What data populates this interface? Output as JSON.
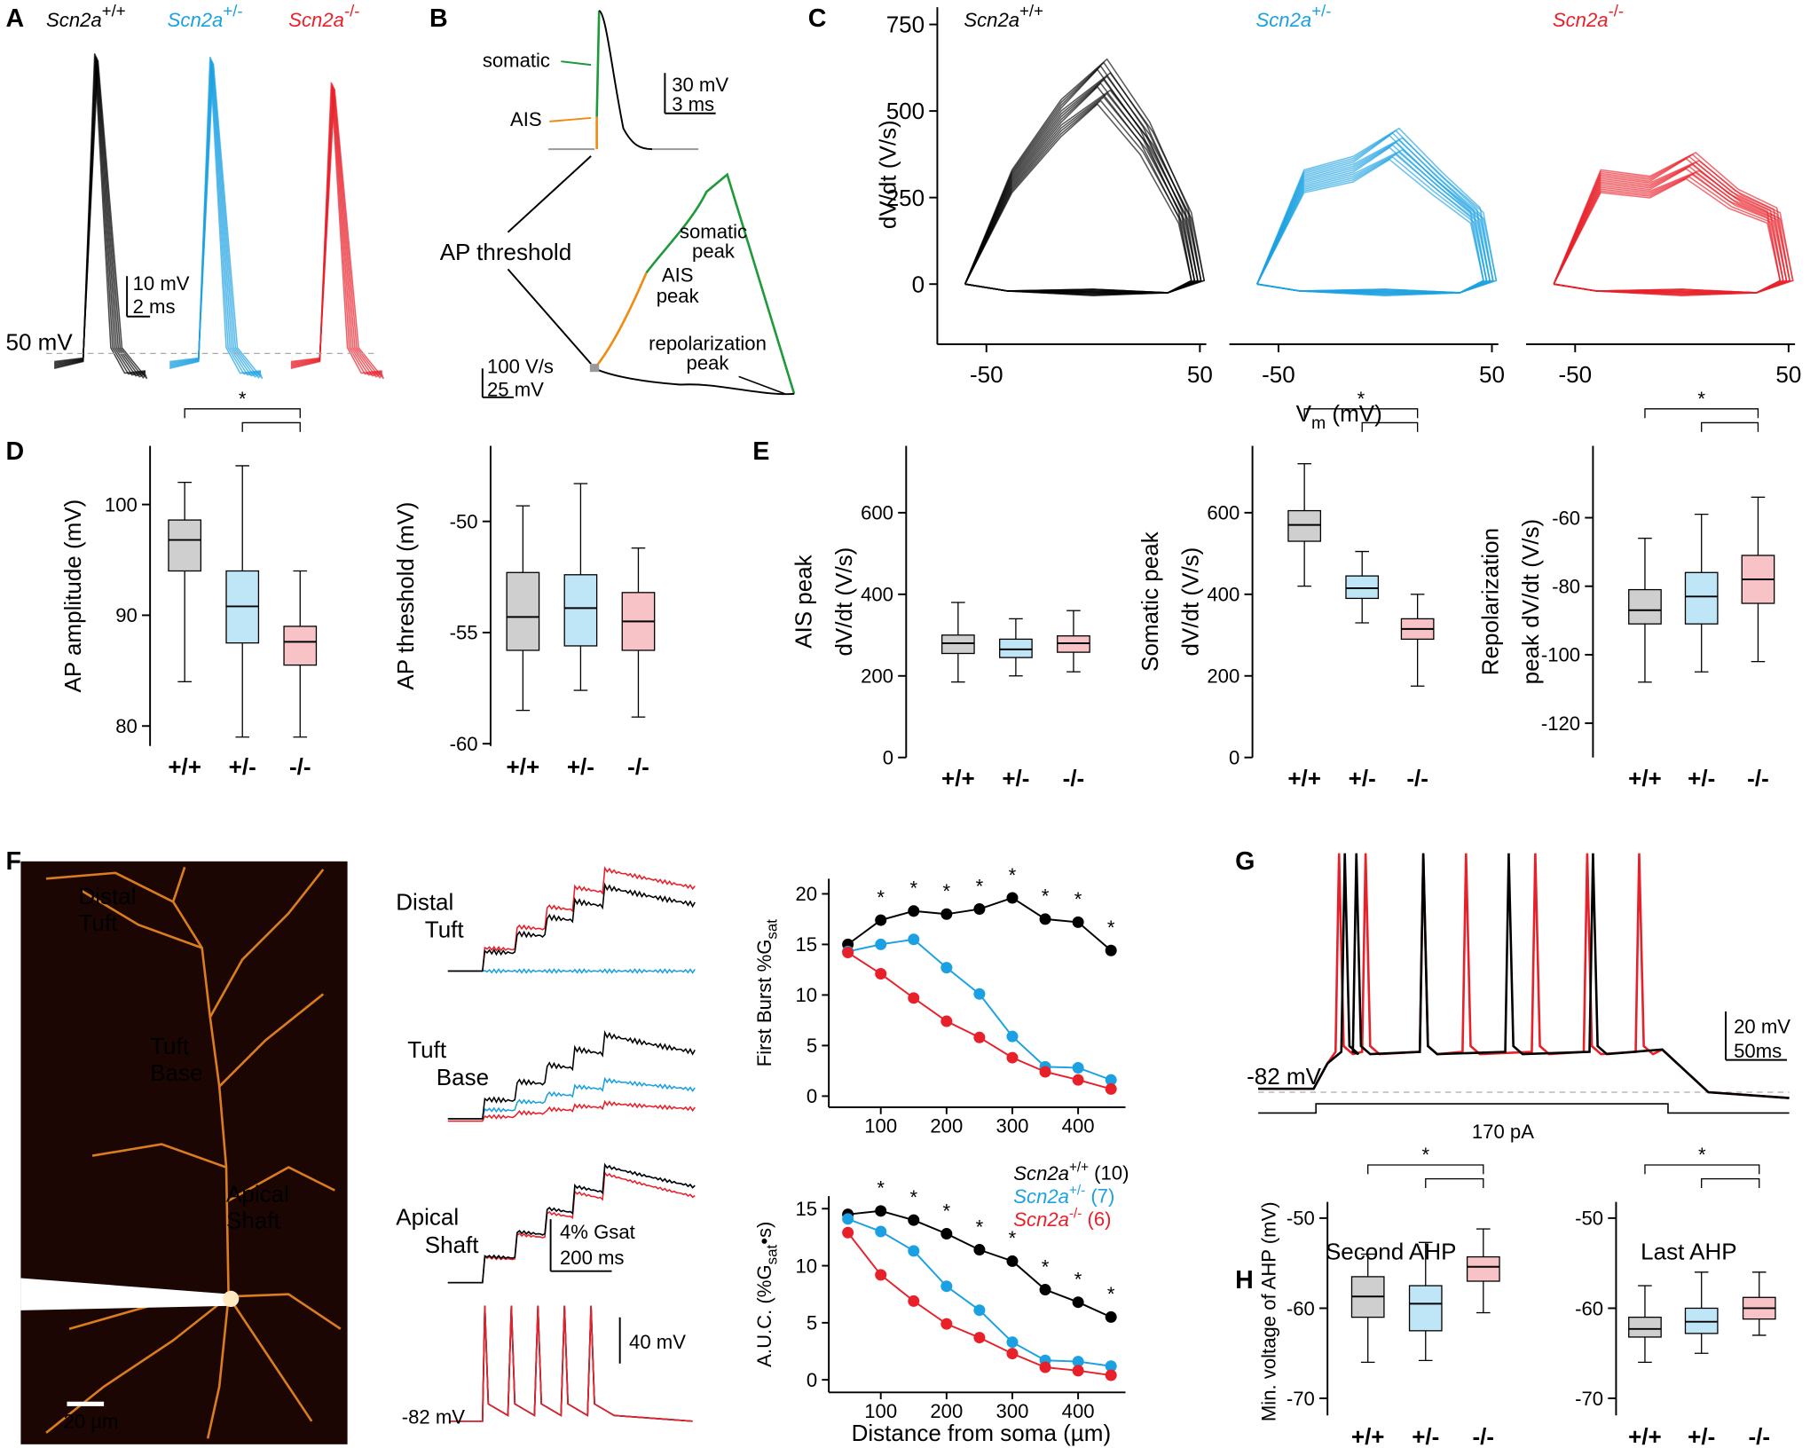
{
  "figure": {
    "gene": "Scn2a",
    "genotypes": [
      "+/+",
      "+/-",
      "-/-"
    ],
    "colors": [
      "#000000",
      "#1ba1e2",
      "#e8202a"
    ],
    "box_fills": [
      "#cfcfcf",
      "#bfe6f7",
      "#f7c3c6"
    ],
    "A": {
      "letter": "A",
      "scale_y": "10 mV",
      "scale_x": "2 ms",
      "reference": "50 mV"
    },
    "B": {
      "letter": "B",
      "somatic": "somatic",
      "ais": "AIS",
      "scale_y": "30 mV",
      "scale_x": "3 ms",
      "threshold": "AP threshold",
      "somatic_peak": [
        "somatic",
        "peak"
      ],
      "ais_peak": [
        "AIS",
        "peak"
      ],
      "repol_peak": [
        "repolarization",
        "peak"
      ],
      "phase_scale_y": "100 V/s",
      "phase_scale_x": "25 mV",
      "somatic_color": "#1e9a3a",
      "ais_color": "#f08a12"
    },
    "C": {
      "letter": "C",
      "y_label": "dV/dt (V/s)",
      "x_label": {
        "text": "V",
        "sub": "m",
        "unit": " (mV)"
      },
      "ylim": [
        -167,
        800
      ],
      "yticks": [
        0,
        250,
        500,
        750
      ],
      "xlim": [
        -73,
        53
      ],
      "xticks": [
        -50,
        50
      ]
    },
    "D": {
      "letter": "D",
      "plots": [
        {
          "y_label": [
            "AP amplitude (mV)"
          ],
          "ylim": [
            78.2,
            105.3
          ],
          "yticks": [
            80,
            90,
            100
          ],
          "significance": "*",
          "boxes": [
            {
              "min": 84,
              "q1": 94,
              "median": 96.8,
              "q3": 98.6,
              "max": 102
            },
            {
              "min": 79,
              "q1": 87.5,
              "median": 90.8,
              "q3": 94,
              "max": 103.5
            },
            {
              "min": 79,
              "q1": 85.5,
              "median": 87.6,
              "q3": 89,
              "max": 94
            }
          ]
        },
        {
          "y_label": [
            "AP threshold (mV)"
          ],
          "ylim": [
            -60.1,
            -46.6
          ],
          "yticks": [
            -50,
            -55,
            -60
          ],
          "boxes": [
            {
              "min": -58.5,
              "q1": -55.8,
              "median": -54.3,
              "q3": -52.3,
              "max": -49.3
            },
            {
              "min": -57.6,
              "q1": -55.6,
              "median": -53.9,
              "q3": -52.4,
              "max": -48.3
            },
            {
              "min": -58.8,
              "q1": -55.8,
              "median": -54.5,
              "q3": -53.2,
              "max": -51.2
            }
          ]
        }
      ]
    },
    "E": {
      "letter": "E",
      "plots": [
        {
          "y_label": [
            "AIS peak",
            "dV/dt (V/s)"
          ],
          "ylim": [
            0,
            764
          ],
          "yticks": [
            0,
            200,
            400,
            600
          ],
          "boxes": [
            {
              "min": 185,
              "q1": 255,
              "median": 280,
              "q3": 300,
              "max": 380
            },
            {
              "min": 200,
              "q1": 245,
              "median": 265,
              "q3": 290,
              "max": 340
            },
            {
              "min": 210,
              "q1": 258,
              "median": 280,
              "q3": 298,
              "max": 360
            }
          ]
        },
        {
          "y_label": [
            "Somatic peak",
            "dV/dt (V/s)"
          ],
          "ylim": [
            0,
            764
          ],
          "yticks": [
            0,
            200,
            400,
            600
          ],
          "significance": "*",
          "boxes": [
            {
              "min": 420,
              "q1": 530,
              "median": 570,
              "q3": 605,
              "max": 720
            },
            {
              "min": 330,
              "q1": 390,
              "median": 415,
              "q3": 445,
              "max": 505
            },
            {
              "min": 175,
              "q1": 290,
              "median": 315,
              "q3": 340,
              "max": 400
            }
          ]
        },
        {
          "y_label": [
            "Repolarization",
            "peak dV/dt (V/s)"
          ],
          "ylim": [
            -130,
            -39
          ],
          "yticks": [
            -60,
            -80,
            -100,
            -120
          ],
          "significance": "*",
          "boxes": [
            {
              "min": -108,
              "q1": -91,
              "median": -87,
              "q3": -81,
              "max": -66
            },
            {
              "min": -105,
              "q1": -91,
              "median": -83,
              "q3": -76,
              "max": -59
            },
            {
              "min": -102,
              "q1": -85,
              "median": -78,
              "q3": -71,
              "max": -54
            }
          ]
        }
      ]
    },
    "F": {
      "letter": "F",
      "image_labels": [
        [
          "Distal",
          "Tuft"
        ],
        [
          "Tuft",
          "Base"
        ],
        [
          "Apical",
          "Shaft"
        ]
      ],
      "image_scale": "20 µm",
      "trace_labels": [
        [
          "Distal",
          "Tuft"
        ],
        [
          "Tuft",
          "Base"
        ],
        [
          "Apical",
          "Shaft"
        ]
      ],
      "scale_g": "4% Gsat",
      "scale_t": "200 ms",
      "scale_v": "40 mV",
      "baseline": "-82 mV",
      "x_label": "Distance from soma (µm)",
      "star": "*",
      "stars_at": [
        100,
        150,
        200,
        250,
        300,
        350,
        400,
        450
      ],
      "legend_counts": [
        "(10)",
        "(7)",
        "(6)"
      ],
      "charts": [
        {
          "type": "line",
          "y_label": {
            "text": "First Burst %G",
            "sub": "sat",
            "tail": ""
          },
          "x": [
            50,
            100,
            150,
            200,
            250,
            300,
            350,
            400,
            450
          ],
          "xlim": [
            21,
            472
          ],
          "xticks": [
            100,
            200,
            300,
            400
          ],
          "ylim": [
            -1.1,
            21.5
          ],
          "yticks": [
            0,
            5,
            10,
            15,
            20
          ],
          "series": [
            {
              "values": [
                15.0,
                17.4,
                18.3,
                18.0,
                18.5,
                19.6,
                17.5,
                17.2,
                14.4
              ]
            },
            {
              "values": [
                14.3,
                15.0,
                15.5,
                12.7,
                10.1,
                5.9,
                2.9,
                2.8,
                1.6
              ]
            },
            {
              "values": [
                14.2,
                12.1,
                9.7,
                7.4,
                5.8,
                3.8,
                2.4,
                1.6,
                0.7
              ]
            }
          ]
        },
        {
          "type": "line",
          "y_label": {
            "text": "A.U.C. (%G",
            "sub": "sat",
            "tail": "•s)"
          },
          "x": [
            50,
            100,
            150,
            200,
            250,
            300,
            350,
            400,
            450
          ],
          "xlim": [
            21,
            472
          ],
          "xticks": [
            100,
            200,
            300,
            400
          ],
          "ylim": [
            -1.1,
            16.1
          ],
          "yticks": [
            0,
            5,
            10,
            15
          ],
          "series": [
            {
              "values": [
                14.5,
                14.8,
                14.0,
                12.8,
                11.4,
                10.4,
                7.9,
                6.8,
                5.5
              ]
            },
            {
              "values": [
                14.1,
                13.0,
                11.3,
                8.2,
                6.1,
                3.3,
                1.7,
                1.6,
                1.2
              ]
            },
            {
              "values": [
                12.9,
                9.2,
                6.9,
                4.9,
                3.7,
                2.3,
                1.1,
                0.8,
                0.4
              ]
            }
          ]
        }
      ]
    },
    "G": {
      "letter": "G",
      "baseline": "-82 mV",
      "scale_y": "20 mV",
      "scale_x": "50ms",
      "stimulus": "170 pA"
    },
    "H": {
      "letter": "H",
      "y_label": "Min. voltage of AHP (mV)",
      "plots": [
        {
          "title": "Second AHP",
          "ylim": [
            -71.9,
            -48.2
          ],
          "yticks": [
            -50,
            -60,
            -70
          ],
          "significance": "*",
          "boxes": [
            {
              "min": -66,
              "q1": -61,
              "median": -58.7,
              "q3": -56.5,
              "max": -54
            },
            {
              "min": -65.8,
              "q1": -62.5,
              "median": -59.5,
              "q3": -57.5,
              "max": -52.7
            },
            {
              "min": -60.5,
              "q1": -57,
              "median": -55.4,
              "q3": -54.3,
              "max": -51.2
            }
          ]
        },
        {
          "title": "Last AHP",
          "ylim": [
            -71.9,
            -48.2
          ],
          "yticks": [
            -50,
            -60,
            -70
          ],
          "significance": "*",
          "boxes": [
            {
              "min": -66,
              "q1": -63.2,
              "median": -62.3,
              "q3": -61,
              "max": -57.5
            },
            {
              "min": -65,
              "q1": -62.8,
              "median": -61.5,
              "q3": -60,
              "max": -56
            },
            {
              "min": -63,
              "q1": -61.2,
              "median": -60,
              "q3": -58.8,
              "max": -56
            }
          ]
        }
      ]
    }
  }
}
